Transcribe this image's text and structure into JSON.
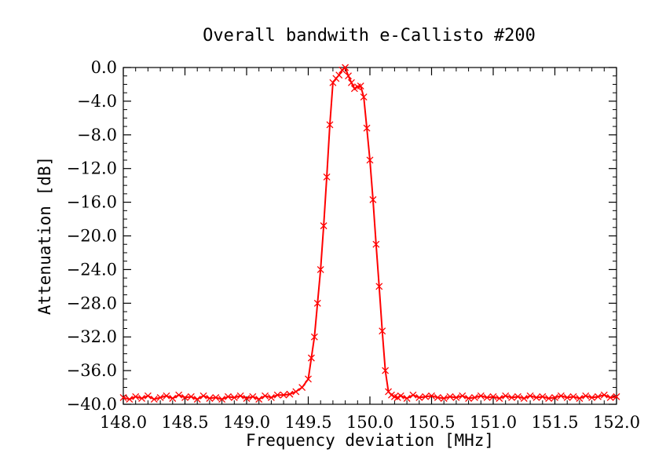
{
  "chart_data": {
    "type": "line",
    "title": "Overall bandwith e-Callisto #200",
    "xlabel": "Frequency deviation [MHz]",
    "ylabel": "Attenuation [dB]",
    "xlim": [
      148.0,
      152.0
    ],
    "ylim": [
      -40.0,
      0.0
    ],
    "x_ticks": [
      148.0,
      148.5,
      149.0,
      149.5,
      150.0,
      150.5,
      151.0,
      151.5,
      152.0
    ],
    "x_tick_labels": [
      "148.0",
      "148.5",
      "149.0",
      "149.5",
      "150.0",
      "150.5",
      "151.0",
      "151.5",
      "152.0"
    ],
    "y_ticks": [
      0,
      -4,
      -8,
      -12,
      -16,
      -20,
      -24,
      -28,
      -32,
      -36,
      -40
    ],
    "y_tick_labels": [
      "0.0",
      "−4.0",
      "−8.0",
      "−12.0",
      "−16.0",
      "−20.0",
      "−24.0",
      "−28.0",
      "−32.0",
      "−36.0",
      "−40.0"
    ],
    "grid": false,
    "line_color": "#ff0000",
    "marker": "x",
    "series": [
      {
        "x": [
          148.0,
          148.05,
          148.1,
          148.15,
          148.2,
          148.25,
          148.3,
          148.35,
          148.4,
          148.45,
          148.5,
          148.55,
          148.6,
          148.65,
          148.7,
          148.75,
          148.8,
          148.85,
          148.9,
          148.95,
          149.0,
          149.05,
          149.1,
          149.15,
          149.2,
          149.25,
          149.3,
          149.35,
          149.4,
          149.45,
          149.5,
          149.525,
          149.55,
          149.575,
          149.6,
          149.625,
          149.65,
          149.675,
          149.7,
          149.725,
          149.75,
          149.775,
          149.8,
          149.825,
          149.85,
          149.875,
          149.9,
          149.925,
          149.95,
          149.975,
          150.0,
          150.025,
          150.05,
          150.075,
          150.1,
          150.125,
          150.15,
          150.175,
          150.2,
          150.225,
          150.25,
          150.3,
          150.35,
          150.4,
          150.45,
          150.5,
          150.55,
          150.6,
          150.65,
          150.7,
          150.75,
          150.8,
          150.85,
          150.9,
          150.95,
          151.0,
          151.05,
          151.1,
          151.15,
          151.2,
          151.25,
          151.3,
          151.35,
          151.4,
          151.45,
          151.5,
          151.55,
          151.6,
          151.65,
          151.7,
          151.75,
          151.8,
          151.85,
          151.9,
          151.95,
          152.0
        ],
        "y": [
          -39.2,
          -39.4,
          -39.1,
          -39.3,
          -39.0,
          -39.4,
          -39.2,
          -39.0,
          -39.3,
          -38.9,
          -39.2,
          -39.1,
          -39.4,
          -39.0,
          -39.3,
          -39.2,
          -39.4,
          -39.1,
          -39.2,
          -39.0,
          -39.3,
          -39.1,
          -39.4,
          -39.0,
          -39.2,
          -38.9,
          -38.9,
          -38.8,
          -38.5,
          -38.0,
          -37.0,
          -34.5,
          -32.0,
          -28.0,
          -24.0,
          -18.8,
          -13.0,
          -6.8,
          -1.8,
          -1.3,
          -0.9,
          -0.3,
          0.0,
          -1.0,
          -1.8,
          -2.5,
          -2.3,
          -2.2,
          -3.5,
          -7.2,
          -11.0,
          -15.7,
          -21.0,
          -26.0,
          -31.3,
          -36.0,
          -38.5,
          -38.9,
          -39.1,
          -39.2,
          -39.0,
          -39.3,
          -38.9,
          -39.2,
          -39.1,
          -39.0,
          -39.2,
          -39.3,
          -39.1,
          -39.2,
          -39.0,
          -39.3,
          -39.2,
          -39.0,
          -39.2,
          -39.1,
          -39.3,
          -39.0,
          -39.2,
          -39.1,
          -39.3,
          -39.0,
          -39.2,
          -39.1,
          -39.3,
          -39.2,
          -39.0,
          -39.2,
          -39.1,
          -39.3,
          -39.0,
          -39.2,
          -39.1,
          -38.9,
          -39.2,
          -39.1
        ]
      }
    ]
  }
}
